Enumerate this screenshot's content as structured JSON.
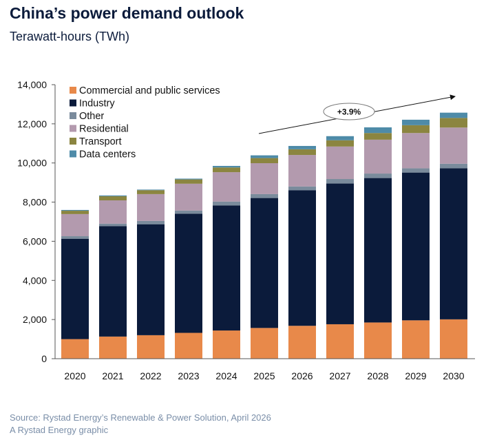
{
  "header": {
    "title": "China’s power demand outlook",
    "subtitle": "Terawatt-hours (TWh)"
  },
  "footer": {
    "source": "Source: Rystad Energy’s Renewable & Power Solution, April 2026",
    "credit": "A Rystad Energy graphic"
  },
  "chart_data": {
    "type": "bar",
    "stacked": true,
    "title": "China’s power demand outlook",
    "ylabel": "Terawatt-hours (TWh)",
    "xlabel": "",
    "ylim": [
      0,
      14000
    ],
    "yticks": [
      "0",
      "2,000",
      "4,000",
      "6,000",
      "8,000",
      "10,000",
      "12,000",
      "14,000"
    ],
    "grid": false,
    "legend_position": "top-left",
    "categories": [
      "2020",
      "2021",
      "2022",
      "2023",
      "2024",
      "2025",
      "2026",
      "2027",
      "2028",
      "2029",
      "2030"
    ],
    "series": [
      {
        "name": "Commercial and public services",
        "color": "#e8894a",
        "values": [
          1000,
          1130,
          1200,
          1320,
          1440,
          1570,
          1680,
          1760,
          1850,
          1960,
          2010
        ]
      },
      {
        "name": "Industry",
        "color": "#0b1b3b",
        "values": [
          5130,
          5640,
          5670,
          6090,
          6390,
          6640,
          6930,
          7190,
          7380,
          7550,
          7720
        ]
      },
      {
        "name": "Other",
        "color": "#7a8b9c",
        "values": [
          130,
          130,
          170,
          160,
          200,
          200,
          190,
          230,
          230,
          220,
          230
        ]
      },
      {
        "name": "Residential",
        "color": "#b39aae",
        "values": [
          1130,
          1190,
          1370,
          1370,
          1500,
          1580,
          1610,
          1660,
          1730,
          1800,
          1850
        ]
      },
      {
        "name": "Transport",
        "color": "#8b8540",
        "values": [
          170,
          210,
          200,
          220,
          240,
          260,
          290,
          320,
          340,
          400,
          490
        ]
      },
      {
        "name": "Data centers",
        "color": "#4e8ba8",
        "values": [
          40,
          40,
          30,
          40,
          80,
          140,
          170,
          210,
          290,
          280,
          270
        ]
      }
    ],
    "annotation": {
      "text": "+3.9%",
      "from_category": "2025",
      "to_category": "2030"
    }
  }
}
